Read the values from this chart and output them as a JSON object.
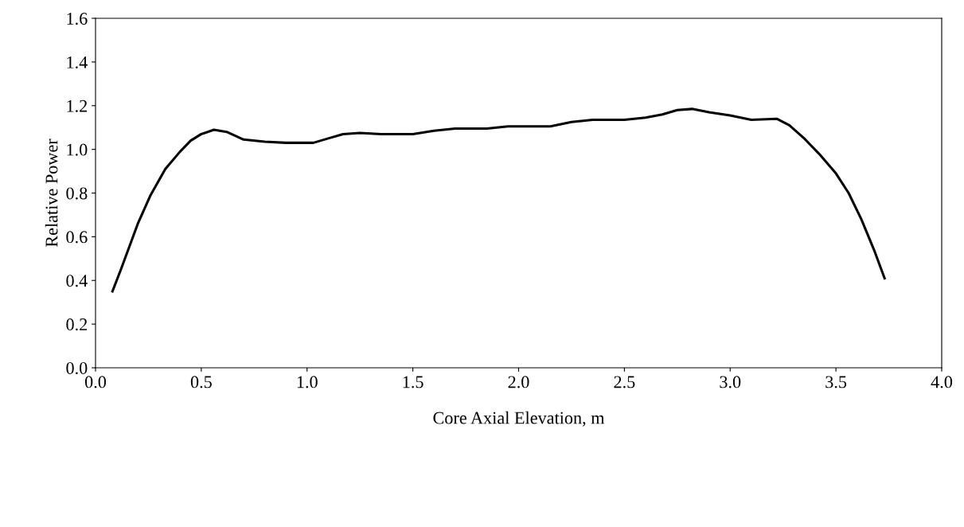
{
  "chart_data": {
    "type": "line",
    "xlabel": "Core Axial Elevation, m",
    "ylabel": "Relative Power",
    "xlim": [
      0.0,
      4.0
    ],
    "xticks": [
      {
        "value": 0,
        "label": "0.0"
      },
      0.5,
      {
        "value": 1,
        "label": "1.0"
      },
      1.5,
      {
        "value": 2,
        "label": "2.0"
      },
      2.5,
      {
        "value": 3,
        "label": "3.0"
      },
      3.5,
      {
        "value": 4,
        "label": "4.0"
      }
    ],
    "ylim": [
      0.0,
      1.6
    ],
    "yticks": [
      {
        "value": 0,
        "label": "0.0"
      },
      0.2,
      0.4,
      0.6,
      0.8,
      {
        "value": 1,
        "label": "1.0"
      },
      1.2,
      1.4,
      1.6
    ],
    "grid": false,
    "legend": false,
    "marker": "none",
    "line_style": "solid",
    "series": [
      {
        "color": "#000000",
        "x": [
          0.08,
          0.12,
          0.2,
          0.26,
          0.33,
          0.4,
          0.45,
          0.5,
          0.56,
          0.62,
          0.7,
          0.8,
          0.9,
          1.03,
          1.1,
          1.17,
          1.25,
          1.35,
          1.5,
          1.6,
          1.7,
          1.85,
          1.95,
          2.05,
          2.15,
          2.25,
          2.35,
          2.5,
          2.6,
          2.68,
          2.75,
          2.82,
          2.9,
          3.0,
          3.1,
          3.22,
          3.28,
          3.35,
          3.42,
          3.5,
          3.56,
          3.62,
          3.68,
          3.73
        ],
        "values": [
          0.35,
          0.45,
          0.66,
          0.79,
          0.91,
          0.99,
          1.04,
          1.07,
          1.09,
          1.08,
          1.045,
          1.035,
          1.03,
          1.03,
          1.05,
          1.07,
          1.075,
          1.07,
          1.07,
          1.085,
          1.095,
          1.095,
          1.105,
          1.105,
          1.105,
          1.125,
          1.135,
          1.135,
          1.145,
          1.16,
          1.18,
          1.185,
          1.17,
          1.155,
          1.135,
          1.14,
          1.11,
          1.05,
          0.98,
          0.89,
          0.8,
          0.68,
          0.54,
          0.41
        ]
      }
    ]
  }
}
